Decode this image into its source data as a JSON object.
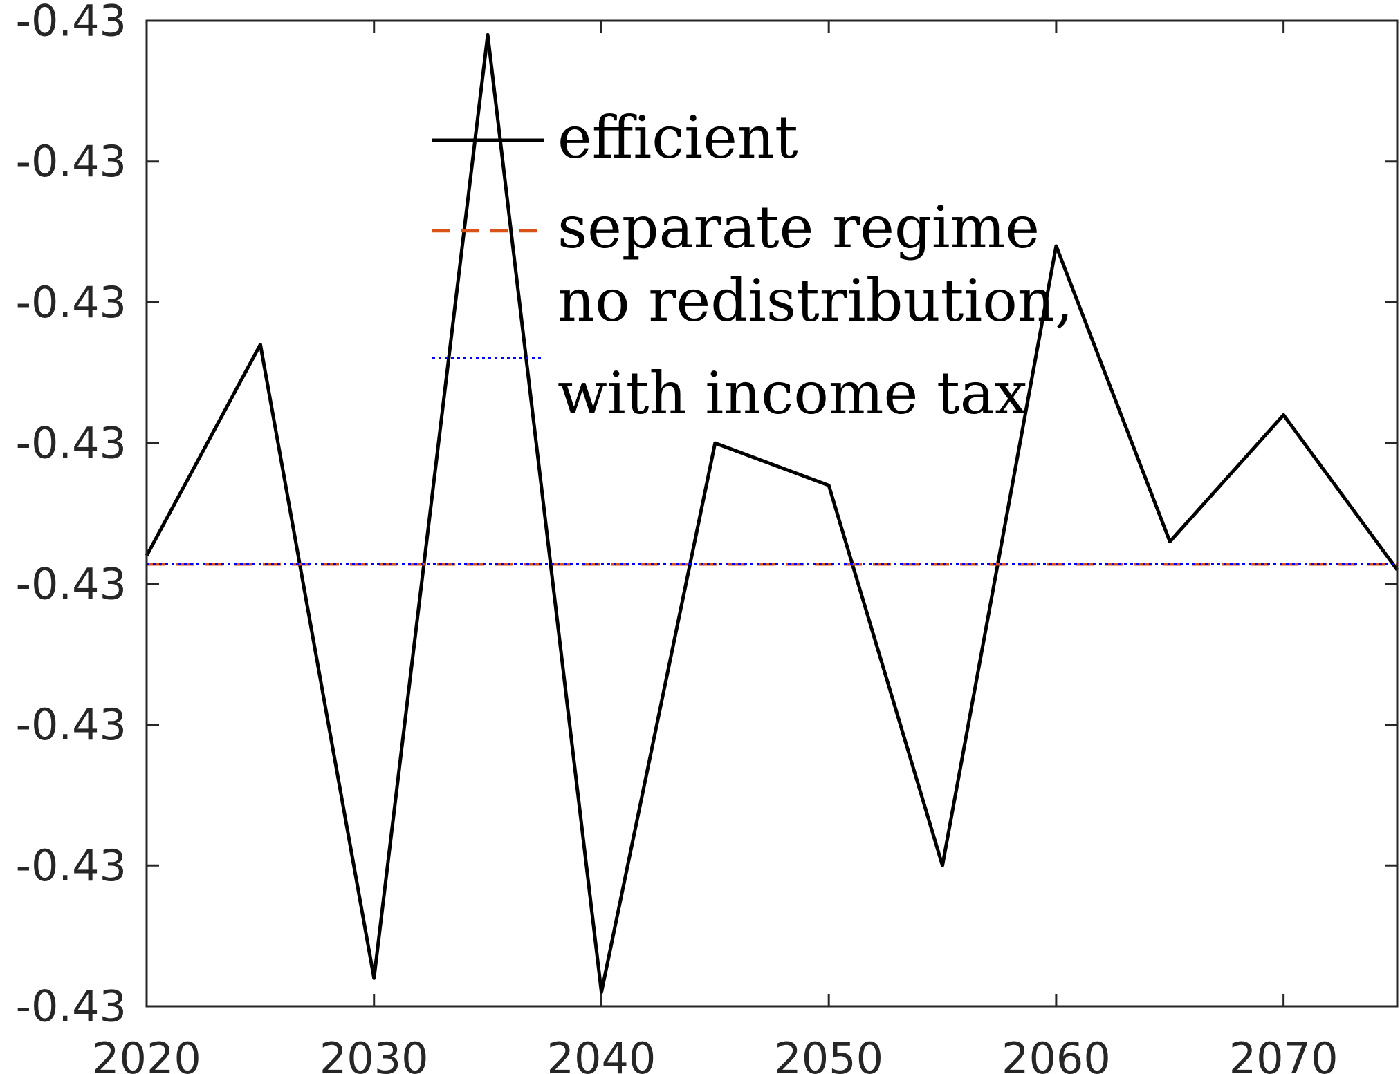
{
  "chart_data": {
    "type": "line",
    "x": [
      2020,
      2025,
      2030,
      2035,
      2040,
      2045,
      2050,
      2055,
      2060,
      2065,
      2070,
      2075
    ],
    "xlim": [
      2020,
      2075
    ],
    "ylim": [
      -0.4307,
      -0.43
    ],
    "x_ticks": [
      2020,
      2030,
      2040,
      2050,
      2060,
      2070
    ],
    "x_tick_labels": [
      "2020",
      "2030",
      "2040",
      "2050",
      "2060",
      "2070"
    ],
    "y_ticks": [
      -0.4307,
      -0.4306,
      -0.4305,
      -0.4304,
      -0.4303,
      -0.4302,
      -0.4301,
      -0.43
    ],
    "y_tick_labels": [
      "-0.43",
      "-0.43",
      "-0.43",
      "-0.43",
      "-0.43",
      "-0.43",
      "-0.43",
      "-0.43"
    ],
    "grid": false,
    "legend_position": "top-center",
    "series": [
      {
        "name": "efficient",
        "style": "solid",
        "color": "#000000",
        "values": [
          -0.43038,
          -0.43023,
          -0.43068,
          -0.43001,
          -0.43069,
          -0.4303,
          -0.43033,
          -0.4306,
          -0.43016,
          -0.43037,
          -0.43028,
          -0.43039
        ]
      },
      {
        "name": "separate regime",
        "style": "dashed",
        "color": "#d95319",
        "values": [
          -0.430386,
          -0.430386,
          -0.430386,
          -0.430386,
          -0.430386,
          -0.430386,
          -0.430386,
          -0.430386,
          -0.430386,
          -0.430386,
          -0.430386,
          -0.430386
        ]
      },
      {
        "name": "no redistribution,\nwith income tax",
        "style": "dotted",
        "color": "#0000ff",
        "values": [
          -0.430386,
          -0.430386,
          -0.430386,
          -0.430386,
          -0.430386,
          -0.430386,
          -0.430386,
          -0.430386,
          -0.430386,
          -0.430386,
          -0.430386,
          -0.430386
        ]
      }
    ],
    "legend": {
      "entries": [
        {
          "label_lines": [
            "efficient"
          ]
        },
        {
          "label_lines": [
            "separate regime"
          ]
        },
        {
          "label_lines": [
            "no redistribution,",
            "with income tax"
          ]
        }
      ]
    }
  }
}
